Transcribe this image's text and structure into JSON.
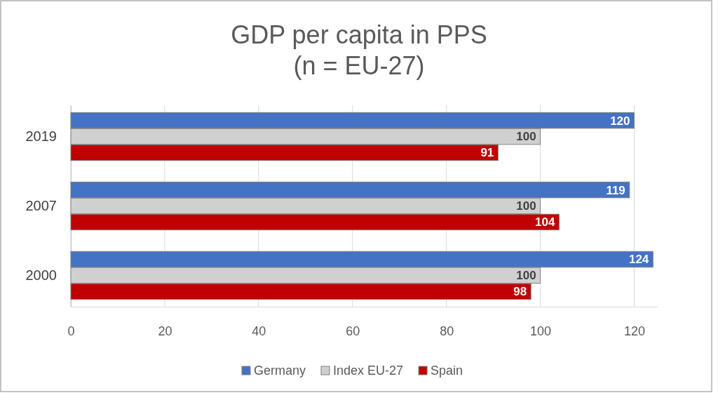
{
  "chart_data": {
    "type": "bar",
    "orientation": "horizontal",
    "title": "GDP per capita in PPS\n(n = EU-27)",
    "categories": [
      "2019",
      "2007",
      "2000"
    ],
    "series": [
      {
        "name": "Germany",
        "color": "#4472c4",
        "values": [
          120,
          119,
          124
        ]
      },
      {
        "name": "Index EU-27",
        "color": "#d0d0d0",
        "values": [
          100,
          100,
          100
        ]
      },
      {
        "name": "Spain",
        "color": "#c00000",
        "values": [
          91,
          104,
          98
        ]
      }
    ],
    "xlim": [
      0,
      125
    ],
    "xticks": [
      0,
      20,
      40,
      60,
      80,
      100,
      120
    ],
    "grid": "x",
    "legend": "bottom",
    "data_labels": true
  }
}
